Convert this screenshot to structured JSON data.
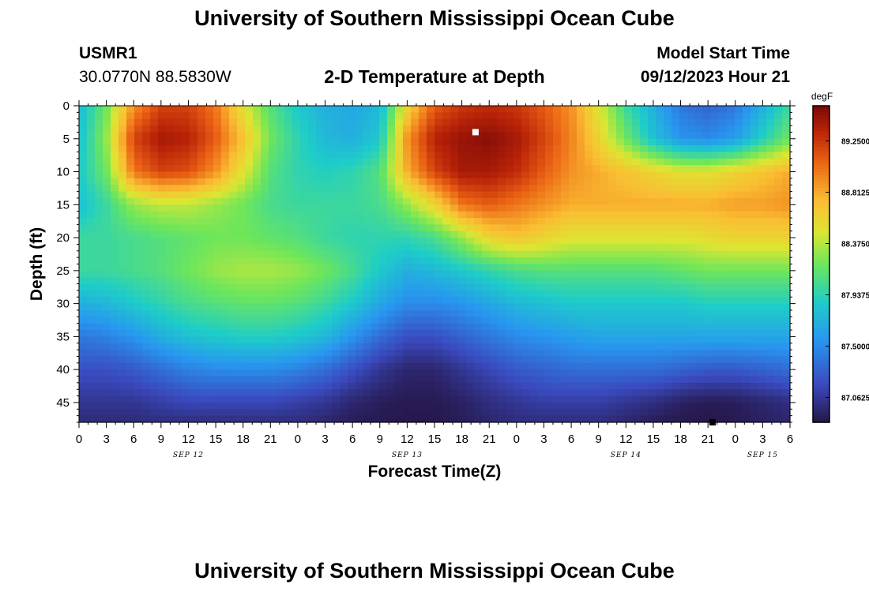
{
  "page": {
    "title_top": "University of Southern Mississippi Ocean Cube",
    "station_id": "USMR1",
    "station_coords": "30.0770N  88.5830W",
    "plot_title": "2-D Temperature at Depth",
    "model_label": "Model Start Time",
    "model_time": "09/12/2023 Hour 21",
    "title_bottom": "University of Southern Mississippi Ocean Cube"
  },
  "chart_data": {
    "type": "heatmap",
    "title": "2-D Temperature at Depth",
    "xlabel": "Forecast Time(Z)",
    "ylabel": "Depth (ft)",
    "units": "degF",
    "xlim": [
      0,
      78
    ],
    "ylim": [
      0,
      48
    ],
    "x_ticks": [
      "0",
      "3",
      "6",
      "9",
      "12",
      "15",
      "18",
      "21",
      "0",
      "3",
      "6",
      "9",
      "12",
      "15",
      "18",
      "21",
      "0",
      "3",
      "6",
      "9",
      "12",
      "15",
      "18",
      "21",
      "0",
      "3",
      "6"
    ],
    "y_ticks": [
      "0",
      "5",
      "10",
      "15",
      "20",
      "25",
      "30",
      "35",
      "40",
      "45"
    ],
    "day_labels": [
      {
        "text": "SEP 12",
        "hour": 12
      },
      {
        "text": "SEP 13",
        "hour": 36
      },
      {
        "text": "SEP 14",
        "hour": 60
      },
      {
        "text": "SEP 15",
        "hour": 75
      }
    ],
    "colorbar": {
      "label": "degF",
      "min": 86.85,
      "max": 89.55,
      "ticks": [
        "89.2500",
        "88.8125",
        "88.3750",
        "87.9375",
        "87.5000",
        "87.0625"
      ]
    },
    "depth_levels": [
      0,
      5,
      10,
      15,
      20,
      25,
      30,
      35,
      40,
      45,
      48
    ],
    "hours": [
      0,
      3,
      6,
      9,
      12,
      15,
      18,
      21,
      24,
      27,
      30,
      33,
      36,
      39,
      42,
      45,
      48,
      51,
      54,
      57,
      60,
      63,
      66,
      69,
      72,
      75,
      78
    ],
    "temperature": [
      [
        87.75,
        88.2,
        88.9,
        89.2,
        89.2,
        89.0,
        88.5,
        88.1,
        87.85,
        87.7,
        87.65,
        87.75,
        88.6,
        89.1,
        89.25,
        89.3,
        89.25,
        89.1,
        88.9,
        88.5,
        88.0,
        87.7,
        87.4,
        87.3,
        87.4,
        87.7,
        88.0
      ],
      [
        87.8,
        88.3,
        89.2,
        89.4,
        89.35,
        89.1,
        88.7,
        88.2,
        87.95,
        87.75,
        87.7,
        87.85,
        88.9,
        89.35,
        89.45,
        89.5,
        89.4,
        89.2,
        88.95,
        88.6,
        88.2,
        87.8,
        87.55,
        87.5,
        87.6,
        87.9,
        88.2
      ],
      [
        87.85,
        88.2,
        89.0,
        89.2,
        89.15,
        88.9,
        88.5,
        88.1,
        87.95,
        87.9,
        87.95,
        88.1,
        88.8,
        89.2,
        89.4,
        89.4,
        89.3,
        89.1,
        88.9,
        88.8,
        88.7,
        88.6,
        88.5,
        88.5,
        88.6,
        88.7,
        88.8
      ],
      [
        87.8,
        88.0,
        88.3,
        88.4,
        88.4,
        88.3,
        88.2,
        88.05,
        88.0,
        88.0,
        88.0,
        88.05,
        88.3,
        88.6,
        89.0,
        89.1,
        89.0,
        88.9,
        88.8,
        88.8,
        88.8,
        88.8,
        88.8,
        88.8,
        88.85,
        88.85,
        88.9
      ],
      [
        88.0,
        88.0,
        88.05,
        88.1,
        88.15,
        88.2,
        88.2,
        88.15,
        88.1,
        88.0,
        87.95,
        87.95,
        87.95,
        88.05,
        88.3,
        88.6,
        88.7,
        88.6,
        88.5,
        88.5,
        88.5,
        88.5,
        88.5,
        88.55,
        88.6,
        88.6,
        88.6
      ],
      [
        88.0,
        88.0,
        88.05,
        88.1,
        88.2,
        88.3,
        88.35,
        88.35,
        88.3,
        88.2,
        88.05,
        87.85,
        87.7,
        87.75,
        87.85,
        87.95,
        88.05,
        88.1,
        88.1,
        88.1,
        88.1,
        88.1,
        88.15,
        88.2,
        88.2,
        88.2,
        88.2
      ],
      [
        87.7,
        87.75,
        87.85,
        87.95,
        88.05,
        88.1,
        88.15,
        88.15,
        88.1,
        88.0,
        87.85,
        87.65,
        87.5,
        87.5,
        87.55,
        87.65,
        87.75,
        87.8,
        87.85,
        87.85,
        87.85,
        87.85,
        87.85,
        87.9,
        87.9,
        87.9,
        87.9
      ],
      [
        87.4,
        87.45,
        87.55,
        87.7,
        87.8,
        87.85,
        87.9,
        87.9,
        87.85,
        87.75,
        87.55,
        87.35,
        87.2,
        87.2,
        87.3,
        87.4,
        87.5,
        87.55,
        87.6,
        87.65,
        87.65,
        87.65,
        87.65,
        87.65,
        87.65,
        87.65,
        87.65
      ],
      [
        87.2,
        87.2,
        87.25,
        87.35,
        87.45,
        87.5,
        87.5,
        87.5,
        87.45,
        87.35,
        87.2,
        87.05,
        86.95,
        86.95,
        87.05,
        87.15,
        87.25,
        87.3,
        87.35,
        87.35,
        87.35,
        87.35,
        87.3,
        87.25,
        87.25,
        87.3,
        87.35
      ],
      [
        87.05,
        87.05,
        87.05,
        87.1,
        87.15,
        87.15,
        87.15,
        87.15,
        87.1,
        87.05,
        86.95,
        86.9,
        86.88,
        86.88,
        86.92,
        87.0,
        87.05,
        87.1,
        87.1,
        87.1,
        87.05,
        87.0,
        86.92,
        86.88,
        86.9,
        86.95,
        87.0
      ],
      [
        86.98,
        86.98,
        86.98,
        87.0,
        87.0,
        87.0,
        87.0,
        87.0,
        87.0,
        86.95,
        86.9,
        86.88,
        86.86,
        86.86,
        86.9,
        86.95,
        87.0,
        87.0,
        87.0,
        87.0,
        86.95,
        86.9,
        86.87,
        86.86,
        86.88,
        86.92,
        86.95
      ]
    ],
    "markers": [
      {
        "hour": 43.5,
        "depth": 4,
        "color": "#ffffff"
      },
      {
        "hour": 69.5,
        "depth": 48,
        "color": "#000000"
      }
    ]
  }
}
